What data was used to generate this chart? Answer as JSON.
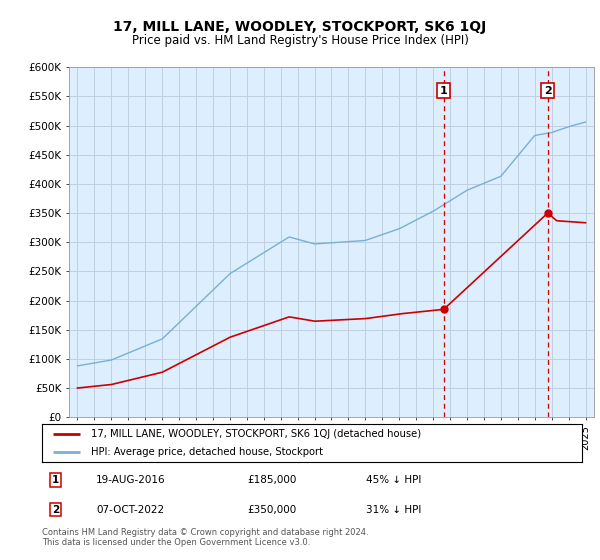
{
  "title": "17, MILL LANE, WOODLEY, STOCKPORT, SK6 1QJ",
  "subtitle": "Price paid vs. HM Land Registry's House Price Index (HPI)",
  "ylabel_ticks": [
    "£0",
    "£50K",
    "£100K",
    "£150K",
    "£200K",
    "£250K",
    "£300K",
    "£350K",
    "£400K",
    "£450K",
    "£500K",
    "£550K",
    "£600K"
  ],
  "ylim": [
    0,
    600000
  ],
  "xlim_start": 1994.5,
  "xlim_end": 2025.5,
  "sale1_date": 2016.63,
  "sale1_price": 185000,
  "sale1_label": "1",
  "sale1_text": "19-AUG-2016",
  "sale1_pct": "45% ↓ HPI",
  "sale2_date": 2022.77,
  "sale2_price": 350000,
  "sale2_label": "2",
  "sale2_text": "07-OCT-2022",
  "sale2_pct": "31% ↓ HPI",
  "hpi_color": "#7aafd4",
  "property_color": "#cc0000",
  "vline_color": "#cc0000",
  "marker_box_color": "#cc0000",
  "bg_color": "#ddeeff",
  "grid_color": "#c0d0e0",
  "legend_line1": "17, MILL LANE, WOODLEY, STOCKPORT, SK6 1QJ (detached house)",
  "legend_line2": "HPI: Average price, detached house, Stockport",
  "footnote": "Contains HM Land Registry data © Crown copyright and database right 2024.\nThis data is licensed under the Open Government Licence v3.0."
}
